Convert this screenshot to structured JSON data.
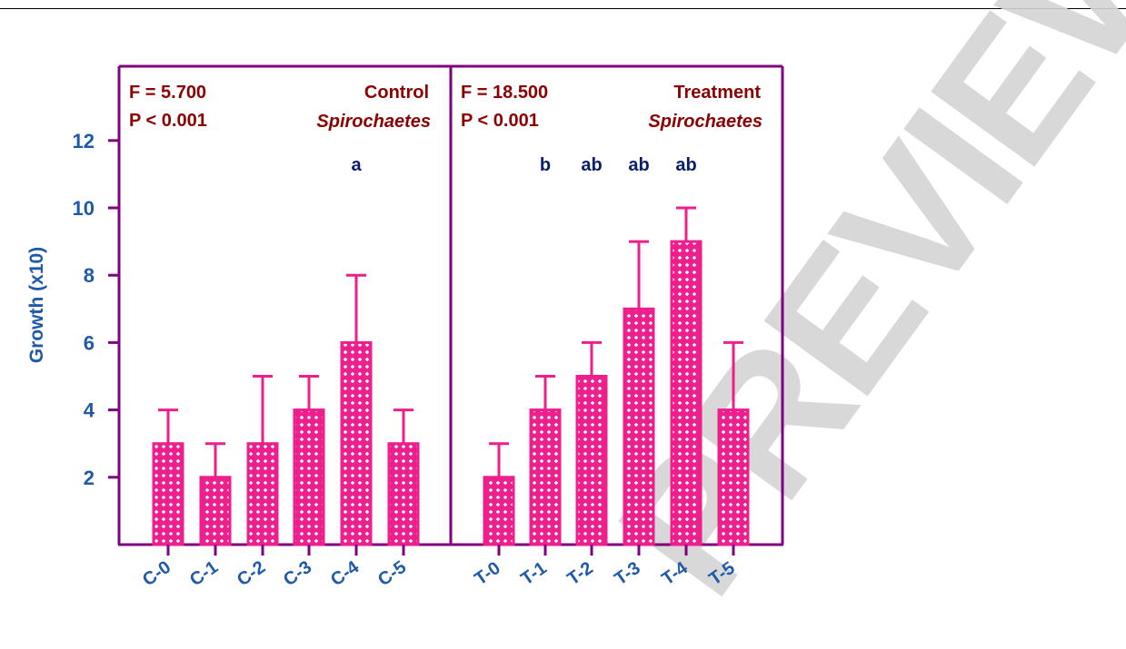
{
  "watermark": {
    "text": "PREVIEW",
    "color": "#d4d4d4"
  },
  "chart_data": {
    "type": "bar",
    "ylabel": "Growth (x10)",
    "ylim": [
      0,
      14
    ],
    "yticks": [
      2,
      4,
      6,
      8,
      10,
      12
    ],
    "grid": false,
    "colors": {
      "bar": "#ee1f8c",
      "frame": "#800080",
      "axis_text": "#1e5aa8",
      "stats_text": "#8b0000",
      "letter_text": "#0a1e6e"
    },
    "panels": [
      {
        "stat_f": "F = 5.700",
        "stat_p": "P < 0.001",
        "group_label": "Control",
        "taxon": "Spirochaetes",
        "categories": [
          "C-0",
          "C-1",
          "C-2",
          "C-3",
          "C-4",
          "C-5"
        ],
        "values": [
          3,
          2,
          3,
          4,
          6,
          3
        ],
        "errors": [
          1,
          1,
          2,
          1,
          2,
          1
        ],
        "letters": [
          "",
          "",
          "",
          "",
          "a",
          ""
        ]
      },
      {
        "stat_f": "F = 18.500",
        "stat_p": "P < 0.001",
        "group_label": "Treatment",
        "taxon": "Spirochaetes",
        "categories": [
          "T-0",
          "T-1",
          "T-2",
          "T-3",
          "T-4",
          "T-5"
        ],
        "values": [
          2,
          4,
          5,
          7,
          9,
          4
        ],
        "errors": [
          1,
          1,
          1,
          2,
          1,
          2
        ],
        "letters": [
          "",
          "b",
          "ab",
          "ab",
          "ab",
          ""
        ]
      }
    ]
  }
}
